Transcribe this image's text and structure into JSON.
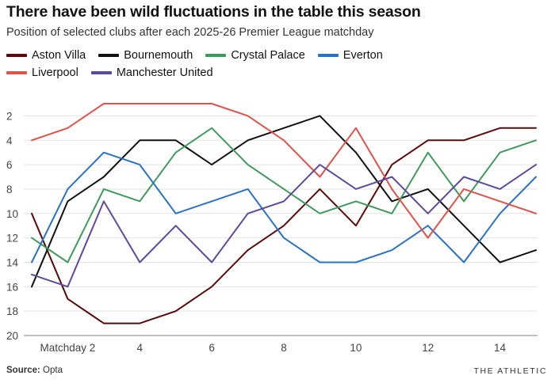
{
  "header": {
    "title": "There have been wild fluctuations in the table this season",
    "subtitle": "Position of selected clubs after each 2025-26 Premier League matchday"
  },
  "footer": {
    "source_label": "Source:",
    "source_value": "Opta",
    "brand": "THE ATHLETIC"
  },
  "chart_data": {
    "type": "line",
    "title": "There have been wild fluctuations in the table this season",
    "subtitle": "Position of selected clubs after each 2025-26 Premier League matchday",
    "xlabel": "",
    "ylabel": "",
    "x": [
      1,
      2,
      3,
      4,
      5,
      6,
      7,
      8,
      9,
      10,
      11,
      12,
      13,
      14,
      15
    ],
    "xlim": [
      1,
      15
    ],
    "ylim": [
      20,
      1
    ],
    "y_inverted": true,
    "x_ticks": [
      {
        "value": 2,
        "label": "Matchday 2"
      },
      {
        "value": 4,
        "label": "4"
      },
      {
        "value": 6,
        "label": "6"
      },
      {
        "value": 8,
        "label": "8"
      },
      {
        "value": 10,
        "label": "10"
      },
      {
        "value": 12,
        "label": "12"
      },
      {
        "value": 14,
        "label": "14"
      }
    ],
    "y_ticks": [
      {
        "value": 2,
        "label": "2"
      },
      {
        "value": 4,
        "label": "4"
      },
      {
        "value": 6,
        "label": "6"
      },
      {
        "value": 8,
        "label": "8"
      },
      {
        "value": 10,
        "label": "10"
      },
      {
        "value": 12,
        "label": "12"
      },
      {
        "value": 14,
        "label": "14"
      },
      {
        "value": 16,
        "label": "16"
      },
      {
        "value": 18,
        "label": "18"
      },
      {
        "value": 20,
        "label": "20"
      }
    ],
    "grid": "horizontal",
    "legend_position": "top-left",
    "series": [
      {
        "name": "Aston Villa",
        "color": "#5a0a0a",
        "values": [
          10,
          17,
          19,
          19,
          18,
          16,
          13,
          11,
          8,
          11,
          6,
          4,
          4,
          3,
          3
        ]
      },
      {
        "name": "Bournemouth",
        "color": "#111111",
        "values": [
          16,
          9,
          7,
          4,
          4,
          6,
          4,
          3,
          2,
          5,
          9,
          8,
          11,
          14,
          13
        ]
      },
      {
        "name": "Crystal Palace",
        "color": "#3f9a5e",
        "values": [
          12,
          14,
          8,
          9,
          5,
          3,
          6,
          8,
          10,
          9,
          10,
          5,
          9,
          5,
          4
        ]
      },
      {
        "name": "Everton",
        "color": "#2a72c4",
        "values": [
          14,
          8,
          5,
          6,
          10,
          9,
          8,
          12,
          14,
          14,
          13,
          11,
          14,
          10,
          7
        ]
      },
      {
        "name": "Liverpool",
        "color": "#e0524a",
        "values": [
          4,
          3,
          1,
          1,
          1,
          1,
          2,
          4,
          7,
          3,
          8,
          12,
          8,
          9,
          10
        ]
      },
      {
        "name": "Manchester United",
        "color": "#5e4a9c",
        "values": [
          15,
          16,
          9,
          14,
          11,
          14,
          10,
          9,
          6,
          8,
          7,
          10,
          7,
          8,
          6
        ]
      }
    ]
  }
}
